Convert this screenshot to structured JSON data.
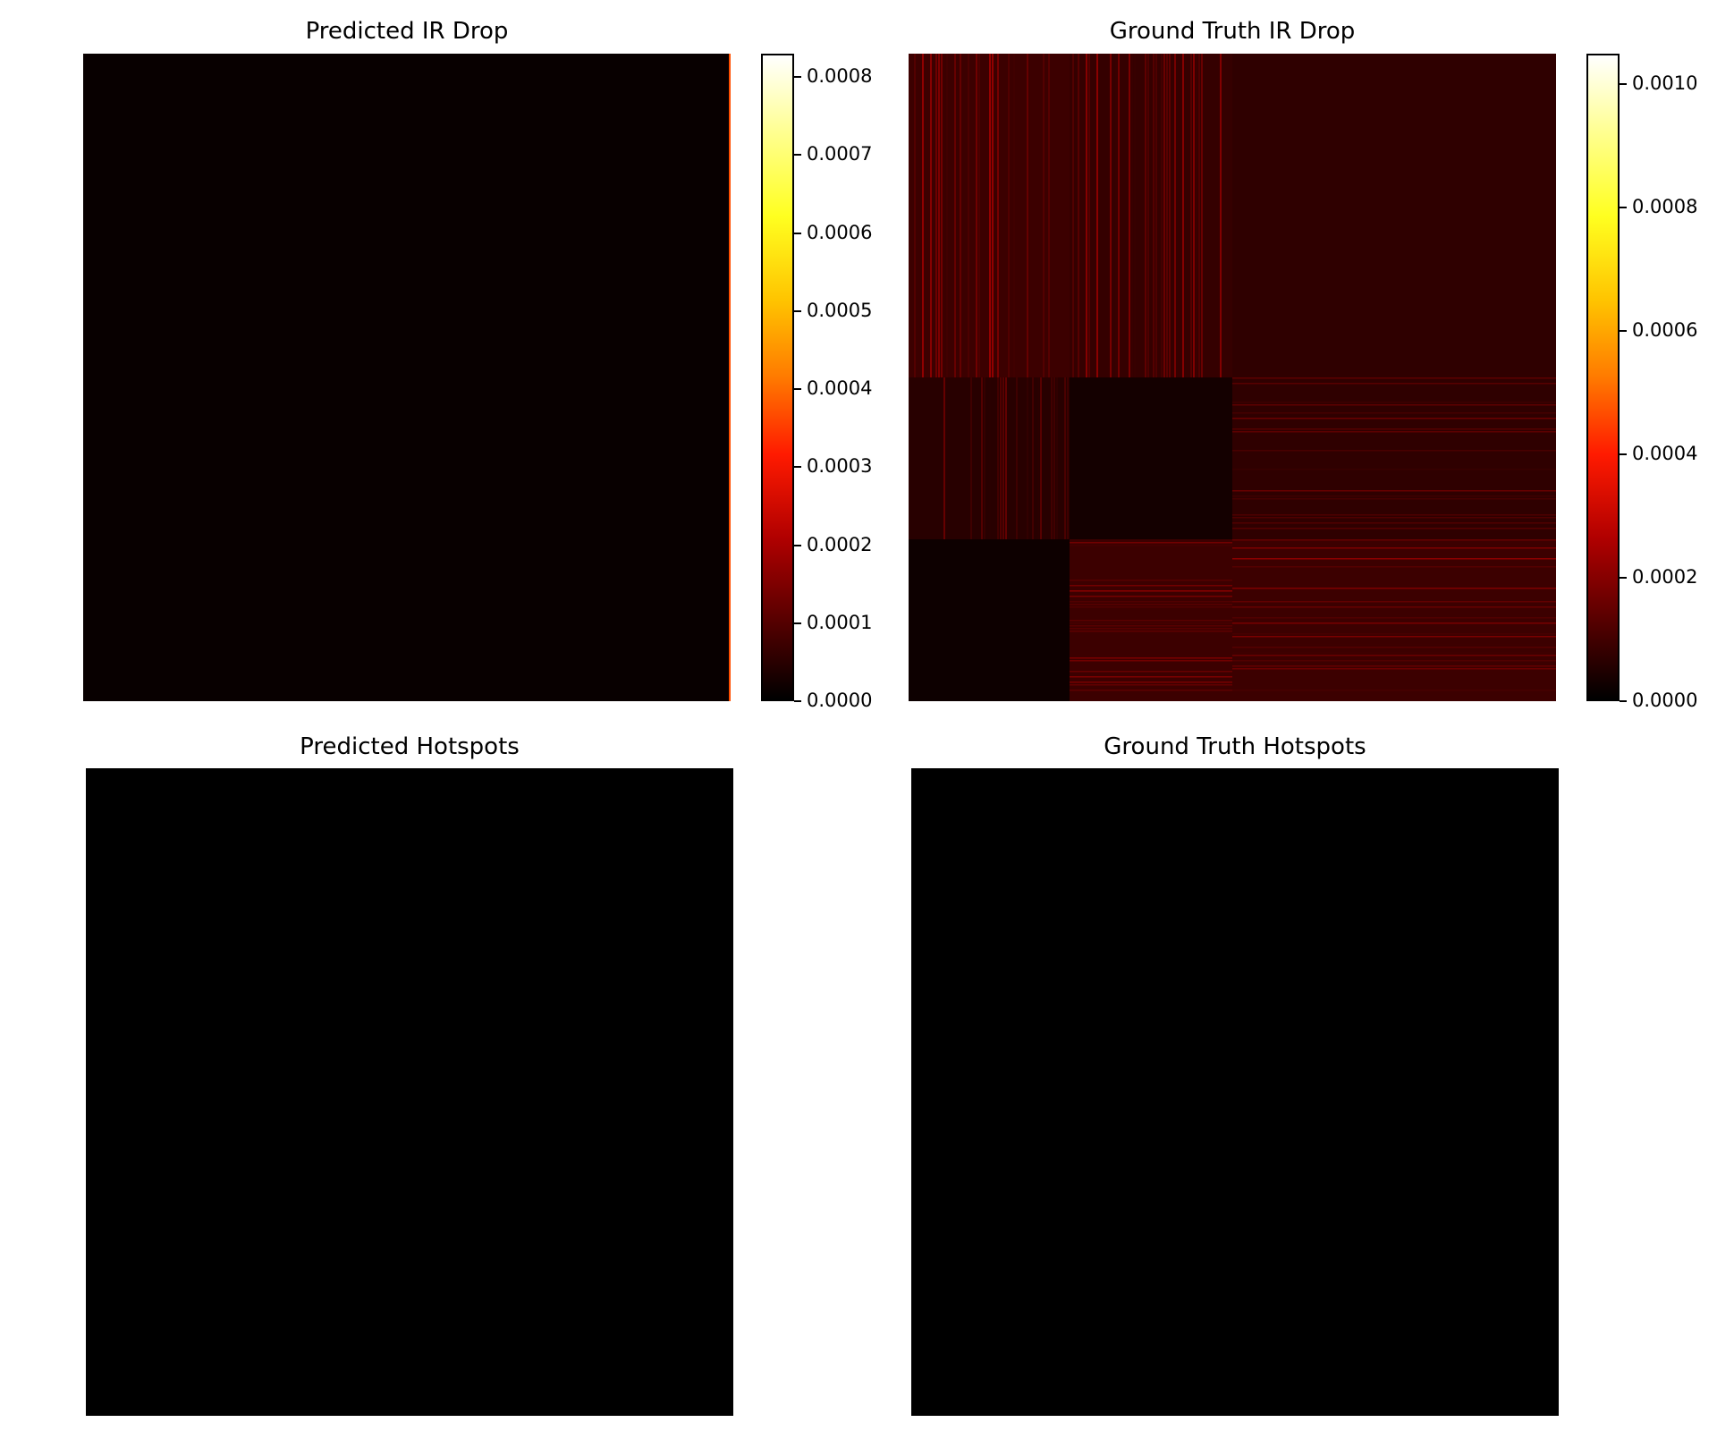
{
  "chart_data": [
    {
      "type": "heatmap",
      "title": "Predicted IR Drop",
      "colormap": "hot",
      "colorbar": {
        "min": 0.0,
        "max": 0.00083,
        "ticks": [
          "0.0000",
          "0.0001",
          "0.0002",
          "0.0003",
          "0.0004",
          "0.0005",
          "0.0006",
          "0.0007",
          "0.0008"
        ],
        "tick_values": [
          0,
          0.0001,
          0.0002,
          0.0003,
          0.0004,
          0.0005,
          0.0006,
          0.0007,
          0.0008
        ]
      },
      "description_values": {
        "background_level": 1e-05,
        "right_edge_peak": 0.0004
      }
    },
    {
      "type": "heatmap",
      "title": "Ground Truth IR Drop",
      "colormap": "hot",
      "colorbar": {
        "min": 0.0,
        "max": 0.00105,
        "ticks": [
          "0.0000",
          "0.0002",
          "0.0004",
          "0.0006",
          "0.0008",
          "0.0010"
        ],
        "tick_values": [
          0,
          0.0002,
          0.0004,
          0.0006,
          0.0008,
          0.001
        ]
      },
      "blocks": [
        {
          "row": 0,
          "col": 0,
          "level": 9e-05,
          "pattern": "vertical-stripes"
        },
        {
          "row": 0,
          "col": 1,
          "level": 8e-05,
          "pattern": "vertical-stripes"
        },
        {
          "row": 0,
          "col": 2,
          "level": 7e-05,
          "pattern": "uniform"
        },
        {
          "row": 1,
          "col": 0,
          "level": 6e-05,
          "pattern": "vertical-stripes"
        },
        {
          "row": 1,
          "col": 1,
          "level": 3e-05,
          "pattern": "uniform"
        },
        {
          "row": 1,
          "col": 2,
          "level": 7e-05,
          "pattern": "horizontal-stripes"
        },
        {
          "row": 2,
          "col": 0,
          "level": 2e-05,
          "pattern": "uniform"
        },
        {
          "row": 2,
          "col": 1,
          "level": 9e-05,
          "pattern": "horizontal-stripes"
        },
        {
          "row": 2,
          "col": 2,
          "level": 9e-05,
          "pattern": "horizontal-stripes"
        }
      ]
    },
    {
      "type": "heatmap",
      "title": "Predicted Hotspots",
      "colormap": "binary",
      "values": "all-zero"
    },
    {
      "type": "heatmap",
      "title": "Ground Truth Hotspots",
      "colormap": "binary",
      "values": "all-zero"
    }
  ]
}
